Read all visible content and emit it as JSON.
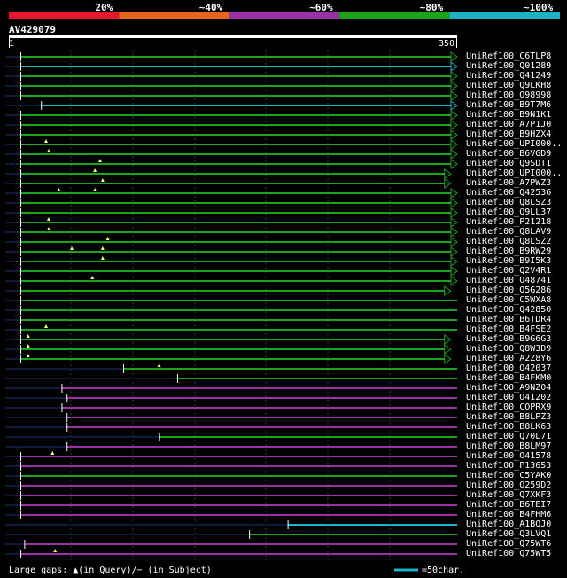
{
  "query_id": "AV429079",
  "identity_legend": [
    {
      "label": "20%",
      "color": "#e8172e"
    },
    {
      "label": "~40%",
      "color": "#e8641c"
    },
    {
      "label": "~60%",
      "color": "#9a2fa6"
    },
    {
      "label": "~80%",
      "color": "#1aa41a"
    },
    {
      "label": "~100%",
      "color": "#1ab4c4"
    }
  ],
  "ruler": {
    "start_label": "1",
    "end_label": "350"
  },
  "footer": {
    "gaps_text": "Large gaps: ▲(in Query)/− (in Subject)",
    "scale_text": "=50char."
  },
  "chart_data": {
    "type": "alignment",
    "query_length": 350,
    "rows": [
      {
        "name": "UniRef100_C6TLP8",
        "start": 10,
        "end": 350,
        "color": "green",
        "arrow": true,
        "tri": []
      },
      {
        "name": "UniRef100_Q01289",
        "start": 10,
        "end": 350,
        "color": "cyan",
        "arrow": true,
        "tri": []
      },
      {
        "name": "UniRef100_Q41249",
        "start": 10,
        "end": 350,
        "color": "green",
        "arrow": true,
        "tri": []
      },
      {
        "name": "UniRef100_Q9LKH8",
        "start": 10,
        "end": 350,
        "color": "green",
        "arrow": true,
        "tri": []
      },
      {
        "name": "UniRef100_O98998",
        "start": 10,
        "end": 350,
        "color": "green",
        "arrow": true,
        "tri": []
      },
      {
        "name": "UniRef100_B9T7M6",
        "start": 26,
        "end": 350,
        "color": "cyan",
        "arrow": true,
        "tri": []
      },
      {
        "name": "UniRef100_B9N1K1",
        "start": 10,
        "end": 350,
        "color": "green",
        "arrow": true,
        "tri": []
      },
      {
        "name": "UniRef100_A7P1J0",
        "start": 10,
        "end": 350,
        "color": "green",
        "arrow": true,
        "tri": []
      },
      {
        "name": "UniRef100_B9HZX4",
        "start": 10,
        "end": 350,
        "color": "green",
        "arrow": true,
        "tri": []
      },
      {
        "name": "UniRef100_UPI000..",
        "start": 10,
        "end": 350,
        "color": "green",
        "arrow": true,
        "tri": [
          30
        ]
      },
      {
        "name": "UniRef100_B6VGD9",
        "start": 10,
        "end": 350,
        "color": "green",
        "arrow": true,
        "tri": [
          32
        ]
      },
      {
        "name": "UniRef100_Q9SDT1",
        "start": 10,
        "end": 350,
        "color": "green",
        "arrow": true,
        "tri": [
          72
        ]
      },
      {
        "name": "UniRef100_UPI000..",
        "start": 10,
        "end": 345,
        "color": "green",
        "arrow": true,
        "tri": [
          68
        ]
      },
      {
        "name": "UniRef100_A7PWZ3",
        "start": 10,
        "end": 345,
        "color": "green",
        "arrow": true,
        "tri": [
          74
        ]
      },
      {
        "name": "UniRef100_Q42536",
        "start": 10,
        "end": 350,
        "color": "green",
        "arrow": true,
        "tri": [
          40,
          68
        ]
      },
      {
        "name": "UniRef100_Q8LSZ3",
        "start": 10,
        "end": 350,
        "color": "green",
        "arrow": true,
        "tri": []
      },
      {
        "name": "UniRef100_Q9LL37",
        "start": 10,
        "end": 350,
        "color": "green",
        "arrow": true,
        "tri": []
      },
      {
        "name": "UniRef100_P21218",
        "start": 10,
        "end": 350,
        "color": "green",
        "arrow": true,
        "tri": [
          32
        ]
      },
      {
        "name": "UniRef100_Q8LAV9",
        "start": 10,
        "end": 350,
        "color": "green",
        "arrow": true,
        "tri": [
          32
        ]
      },
      {
        "name": "UniRef100_Q8LSZ2",
        "start": 10,
        "end": 350,
        "color": "green",
        "arrow": true,
        "tri": [
          78
        ]
      },
      {
        "name": "UniRef100_B9RW29",
        "start": 10,
        "end": 350,
        "color": "green",
        "arrow": true,
        "tri": [
          50,
          74
        ]
      },
      {
        "name": "UniRef100_B9I5K3",
        "start": 10,
        "end": 350,
        "color": "green",
        "arrow": true,
        "tri": [
          74
        ]
      },
      {
        "name": "UniRef100_Q2V4R1",
        "start": 10,
        "end": 350,
        "color": "green",
        "arrow": true,
        "tri": []
      },
      {
        "name": "UniRef100_O48741",
        "start": 10,
        "end": 350,
        "color": "green",
        "arrow": true,
        "tri": [
          66
        ]
      },
      {
        "name": "UniRef100_Q5G286",
        "start": 10,
        "end": 345,
        "color": "green",
        "arrow": true,
        "tri": []
      },
      {
        "name": "UniRef100_C5WXA8",
        "start": 10,
        "end": 350,
        "color": "green",
        "arrow": false,
        "tri": []
      },
      {
        "name": "UniRef100_Q42850",
        "start": 10,
        "end": 350,
        "color": "green",
        "arrow": false,
        "tri": []
      },
      {
        "name": "UniRef100_B6TDR4",
        "start": 10,
        "end": 350,
        "color": "green",
        "arrow": false,
        "tri": []
      },
      {
        "name": "UniRef100_B4FSE2",
        "start": 10,
        "end": 350,
        "color": "green",
        "arrow": false,
        "tri": [
          30
        ]
      },
      {
        "name": "UniRef100_B9G6G3",
        "start": 10,
        "end": 345,
        "color": "green",
        "arrow": true,
        "tri": [
          16
        ]
      },
      {
        "name": "UniRef100_Q8W3D9",
        "start": 10,
        "end": 345,
        "color": "green",
        "arrow": true,
        "tri": [
          16
        ]
      },
      {
        "name": "UniRef100_A2Z8Y6",
        "start": 10,
        "end": 345,
        "color": "green",
        "arrow": true,
        "tri": [
          16
        ]
      },
      {
        "name": "UniRef100_Q42037",
        "start": 90,
        "end": 350,
        "color": "green",
        "arrow": false,
        "tri": [
          118
        ]
      },
      {
        "name": "UniRef100_B4FKM0",
        "start": 132,
        "end": 350,
        "color": "green",
        "arrow": false,
        "tri": []
      },
      {
        "name": "UniRef100_A9NZ04",
        "start": 42,
        "end": 350,
        "color": "purple",
        "arrow": false,
        "tri": []
      },
      {
        "name": "UniRef100_O41202",
        "start": 46,
        "end": 350,
        "color": "purple",
        "arrow": false,
        "tri": []
      },
      {
        "name": "UniRef100_COPRX9",
        "start": 42,
        "end": 350,
        "color": "purple",
        "arrow": false,
        "tri": []
      },
      {
        "name": "UniRef100_B8LPZ3",
        "start": 46,
        "end": 350,
        "color": "purple",
        "arrow": false,
        "tri": []
      },
      {
        "name": "UniRef100_B8LK63",
        "start": 46,
        "end": 350,
        "color": "purple",
        "arrow": false,
        "tri": []
      },
      {
        "name": "UniRef100_Q70L71",
        "start": 118,
        "end": 350,
        "color": "green",
        "arrow": false,
        "tri": []
      },
      {
        "name": "UniRef100_B8LM97",
        "start": 46,
        "end": 350,
        "color": "purple",
        "arrow": false,
        "tri": []
      },
      {
        "name": "UniRef100_O41578",
        "start": 10,
        "end": 350,
        "color": "purple",
        "arrow": false,
        "tri": [
          35
        ]
      },
      {
        "name": "UniRef100_P13653",
        "start": 10,
        "end": 350,
        "color": "purple",
        "arrow": false,
        "tri": []
      },
      {
        "name": "UniRef100_C5YAK0",
        "start": 10,
        "end": 350,
        "color": "green",
        "arrow": false,
        "tri": []
      },
      {
        "name": "UniRef100_Q259D2",
        "start": 10,
        "end": 350,
        "color": "purple",
        "arrow": false,
        "tri": []
      },
      {
        "name": "UniRef100_Q7XKF3",
        "start": 10,
        "end": 350,
        "color": "purple",
        "arrow": false,
        "tri": []
      },
      {
        "name": "UniRef100_B6TEI7",
        "start": 10,
        "end": 350,
        "color": "purple",
        "arrow": false,
        "tri": []
      },
      {
        "name": "UniRef100_B4FHM6",
        "start": 10,
        "end": 350,
        "color": "purple",
        "arrow": false,
        "tri": []
      },
      {
        "name": "UniRef100_A1BQJ0",
        "start": 218,
        "end": 350,
        "color": "cyan",
        "arrow": false,
        "tri": []
      },
      {
        "name": "UniRef100_Q3LVQ1",
        "start": 188,
        "end": 350,
        "color": "green",
        "arrow": false,
        "tri": []
      },
      {
        "name": "UniRef100_Q75WT6",
        "start": 13,
        "end": 350,
        "color": "purple",
        "arrow": false,
        "tri": []
      },
      {
        "name": "UniRef100_Q75WT5",
        "start": 10,
        "end": 350,
        "color": "purple",
        "arrow": false,
        "tri": [
          37
        ]
      }
    ]
  }
}
